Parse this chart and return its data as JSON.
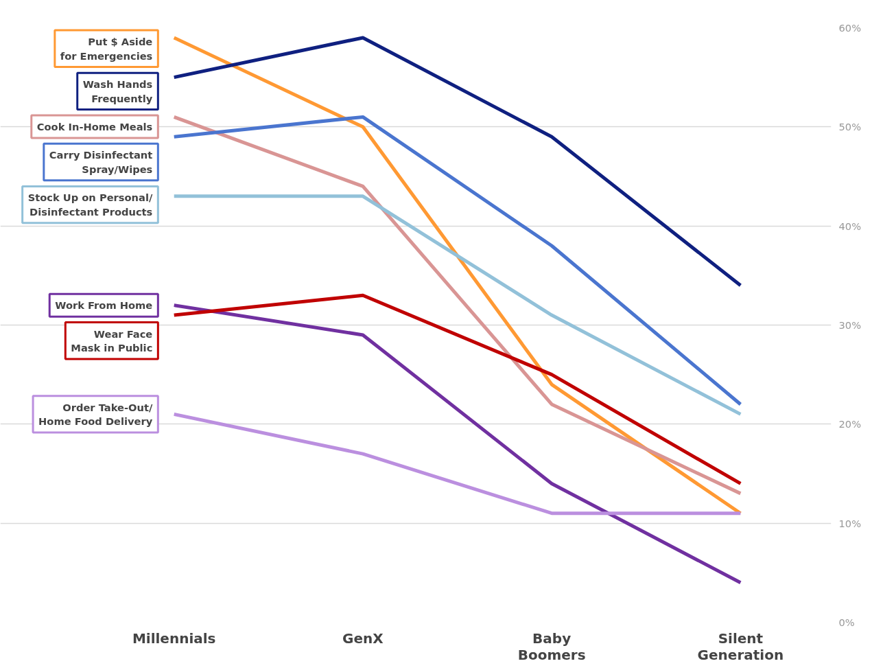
{
  "chart_data": {
    "type": "line",
    "categories": [
      "Millennials",
      "GenX",
      "Baby\nBoomers",
      "Silent\nGeneration"
    ],
    "series": [
      {
        "name": "Put $ Aside\nfor Emergencies",
        "color": "#ff9933",
        "values": [
          59,
          50,
          24,
          11
        ]
      },
      {
        "name": "Wash Hands\nFrequently",
        "color": "#0f2080",
        "values": [
          55,
          59,
          49,
          34
        ]
      },
      {
        "name": "Cook In-Home Meals",
        "color": "#d99594",
        "values": [
          51,
          44,
          22,
          13
        ]
      },
      {
        "name": "Carry Disinfectant\nSpray/Wipes",
        "color": "#4a75cf",
        "values": [
          49,
          51,
          38,
          22
        ]
      },
      {
        "name": "Stock Up on Personal/\nDisinfectant Products",
        "color": "#92c1d9",
        "values": [
          43,
          43,
          31,
          21
        ]
      },
      {
        "name": "Work From Home",
        "color": "#7030a0",
        "values": [
          32,
          29,
          14,
          4
        ]
      },
      {
        "name": "Wear Face\nMask in Public",
        "color": "#c00000",
        "values": [
          31,
          33,
          25,
          14
        ]
      },
      {
        "name": "Order Take-Out/\nHome Food Delivery",
        "color": "#bb8fdf",
        "values": [
          21,
          17,
          11,
          11
        ]
      }
    ],
    "ylim": [
      0,
      60
    ],
    "yticks": [
      {
        "value": 0,
        "label": "0%"
      },
      {
        "value": 10,
        "label": "10%"
      },
      {
        "value": 20,
        "label": "20%"
      },
      {
        "value": 30,
        "label": "30%"
      },
      {
        "value": 40,
        "label": "40%"
      },
      {
        "value": 50,
        "label": "50%"
      },
      {
        "value": 60,
        "label": "60%"
      }
    ],
    "grid": "y",
    "marker": "none",
    "line_style": "solid"
  }
}
